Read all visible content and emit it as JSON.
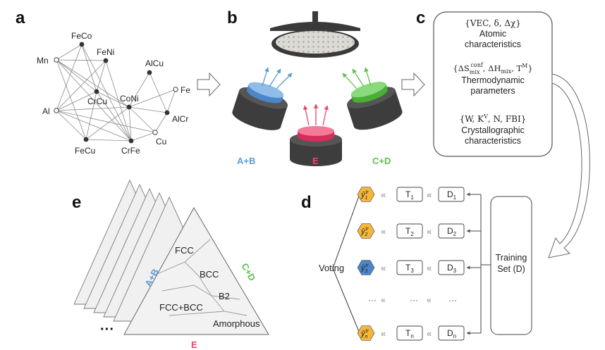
{
  "panels": {
    "a": {
      "letter": "a",
      "nodes": {
        "mn": "Mn",
        "al": "Al",
        "feco": "FeCo",
        "feni": "FeNi",
        "crcu": "CrCu",
        "coni": "CoNi",
        "alcu": "AlCu",
        "fe": "Fe",
        "alcr": "AlCr",
        "cu": "Cu",
        "crfe": "CrFe",
        "fecu": "FeCu"
      }
    },
    "b": {
      "letter": "b",
      "labels": {
        "ab": "A+B",
        "e": "E",
        "cd": "C+D"
      },
      "colors": {
        "blue": "#5b9bd5",
        "red": "#e8476f",
        "green": "#5ec24a"
      }
    },
    "c": {
      "letter": "c",
      "groups": [
        {
          "formula": "{VEC, δ, Δχ}",
          "label1": "Atomic",
          "label2": "characteristics"
        },
        {
          "formula": "{ΔS_mix^conf, ΔH_mix, T^M}",
          "label1": "Thermodynamic",
          "label2": "parameters"
        },
        {
          "formula": "{W, K^V, N, FBI}",
          "label1": "Crystallographic",
          "label2": "characteristics"
        }
      ]
    },
    "d": {
      "letter": "d",
      "voting": "Voting",
      "training_line1": "Training",
      "training_line2": "Set (D)",
      "rows": [
        {
          "pred": "ŷ",
          "pred_sub": "1",
          "pred_sup": "tr",
          "tree": "T",
          "tree_sub": "1",
          "data": "D",
          "data_sub": "1",
          "color": "#f5b63a"
        },
        {
          "pred": "ŷ",
          "pred_sub": "2",
          "pred_sup": "tr",
          "tree": "T",
          "tree_sub": "2",
          "data": "D",
          "data_sub": "2",
          "color": "#f5b63a"
        },
        {
          "pred": "ŷ",
          "pred_sub": "3",
          "pred_sup": "tr",
          "tree": "T",
          "tree_sub": "3",
          "data": "D",
          "data_sub": "3",
          "color": "#4a86c8"
        },
        {
          "pred": "ŷ",
          "pred_sub": "n",
          "pred_sup": "tr",
          "tree": "T",
          "tree_sub": "n",
          "data": "D",
          "data_sub": "n",
          "color": "#f5b63a"
        }
      ],
      "ellipsis": "···",
      "chevrons": "«"
    },
    "e": {
      "letter": "e",
      "labels": {
        "ab": "A+B",
        "cd": "C+D",
        "e": "E"
      },
      "phases": {
        "fcc": "FCC",
        "bcc": "BCC",
        "b2": "B2",
        "fccbcc": "FCC+BCC",
        "amorphous": "Amorphous"
      },
      "dots": "···"
    }
  }
}
